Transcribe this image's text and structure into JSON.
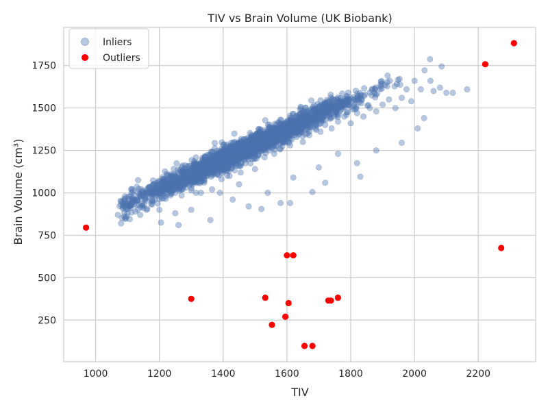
{
  "chart_data": {
    "type": "scatter",
    "title": "TIV vs Brain Volume (UK Biobank)",
    "xlabel": "TIV",
    "ylabel": "Brain Volume (cm³)",
    "xlim": [
      900,
      2380
    ],
    "ylim": [
      5,
      1975
    ],
    "x_ticks": [
      1000,
      1200,
      1400,
      1600,
      1800,
      2000,
      2200
    ],
    "y_ticks": [
      250,
      500,
      750,
      1000,
      1250,
      1500,
      1750
    ],
    "grid": true,
    "legend_position": "top-left",
    "series": [
      {
        "name": "Inliers",
        "color": "#4c72b0",
        "marker": "circle",
        "alpha": 0.4,
        "points": [
          [
            1070,
            870
          ],
          [
            1080,
            820
          ],
          [
            1090,
            860
          ],
          [
            1100,
            880
          ],
          [
            1110,
            925
          ],
          [
            1115,
            970
          ],
          [
            1125,
            890
          ],
          [
            1130,
            955
          ],
          [
            1140,
            870
          ],
          [
            1150,
            910
          ],
          [
            1160,
            900
          ],
          [
            1175,
            935
          ],
          [
            1185,
            960
          ],
          [
            1200,
            900
          ],
          [
            1205,
            825
          ],
          [
            1210,
            1010
          ],
          [
            1220,
            965
          ],
          [
            1235,
            985
          ],
          [
            1250,
            1000
          ],
          [
            1260,
            810
          ],
          [
            1270,
            1020
          ],
          [
            1285,
            1060
          ],
          [
            1300,
            1015
          ],
          [
            1315,
            1000
          ],
          [
            1320,
            1080
          ],
          [
            1330,
            1000
          ],
          [
            1340,
            1060
          ],
          [
            1355,
            1140
          ],
          [
            1365,
            1020
          ],
          [
            1380,
            1110
          ],
          [
            1395,
            1080
          ],
          [
            1410,
            1130
          ],
          [
            1420,
            1100
          ],
          [
            1440,
            1160
          ],
          [
            1455,
            1120
          ],
          [
            1470,
            1175
          ],
          [
            1490,
            1200
          ],
          [
            1500,
            1140
          ],
          [
            1510,
            1220
          ],
          [
            1530,
            1210
          ],
          [
            1545,
            1250
          ],
          [
            1560,
            1230
          ],
          [
            1580,
            1260
          ],
          [
            1595,
            1300
          ],
          [
            1610,
            1280
          ],
          [
            1630,
            1330
          ],
          [
            1650,
            1300
          ],
          [
            1670,
            1340
          ],
          [
            1690,
            1380
          ],
          [
            1705,
            1360
          ],
          [
            1720,
            1400
          ],
          [
            1740,
            1380
          ],
          [
            1760,
            1420
          ],
          [
            1780,
            1450
          ],
          [
            1800,
            1410
          ],
          [
            1820,
            1470
          ],
          [
            1840,
            1450
          ],
          [
            1860,
            1500
          ],
          [
            1880,
            1480
          ],
          [
            1900,
            1520
          ],
          [
            1920,
            1550
          ],
          [
            1940,
            1500
          ],
          [
            1960,
            1560
          ],
          [
            1975,
            1610
          ],
          [
            1990,
            1540
          ],
          [
            2000,
            1660
          ],
          [
            2010,
            1380
          ],
          [
            2020,
            1610
          ],
          [
            2030,
            1440
          ],
          [
            2050,
            1660
          ],
          [
            2060,
            1600
          ],
          [
            2080,
            1620
          ],
          [
            2085,
            1745
          ],
          [
            2100,
            1590
          ],
          [
            2120,
            1590
          ],
          [
            2165,
            1610
          ],
          [
            1960,
            1295
          ],
          [
            1880,
            1250
          ],
          [
            1820,
            1175
          ],
          [
            1830,
            1095
          ],
          [
            1720,
            1060
          ],
          [
            1680,
            1005
          ],
          [
            1610,
            940
          ],
          [
            1580,
            940
          ],
          [
            1520,
            905
          ],
          [
            1480,
            920
          ],
          [
            1430,
            960
          ],
          [
            1360,
            840
          ],
          [
            1300,
            900
          ],
          [
            1250,
            880
          ],
          [
            1620,
            1090
          ],
          [
            1540,
            1000
          ],
          [
            1700,
            1150
          ],
          [
            1760,
            1230
          ],
          [
            1640,
            1380
          ],
          [
            1560,
            1300
          ],
          [
            1480,
            1260
          ],
          [
            1410,
            1190
          ],
          [
            1450,
            1050
          ],
          [
            1390,
            1000
          ]
        ]
      },
      {
        "name": "Outliers",
        "color": "#ff0000",
        "marker": "circle",
        "alpha": 1,
        "points": [
          [
            970,
            795
          ],
          [
            1300,
            375
          ],
          [
            1532,
            382
          ],
          [
            1553,
            222
          ],
          [
            1595,
            270
          ],
          [
            1600,
            632
          ],
          [
            1605,
            350
          ],
          [
            1620,
            632
          ],
          [
            1655,
            98
          ],
          [
            1680,
            98
          ],
          [
            1730,
            365
          ],
          [
            1738,
            365
          ],
          [
            1760,
            382
          ],
          [
            2222,
            1758
          ],
          [
            2272,
            675
          ],
          [
            2312,
            1882
          ]
        ]
      }
    ]
  }
}
